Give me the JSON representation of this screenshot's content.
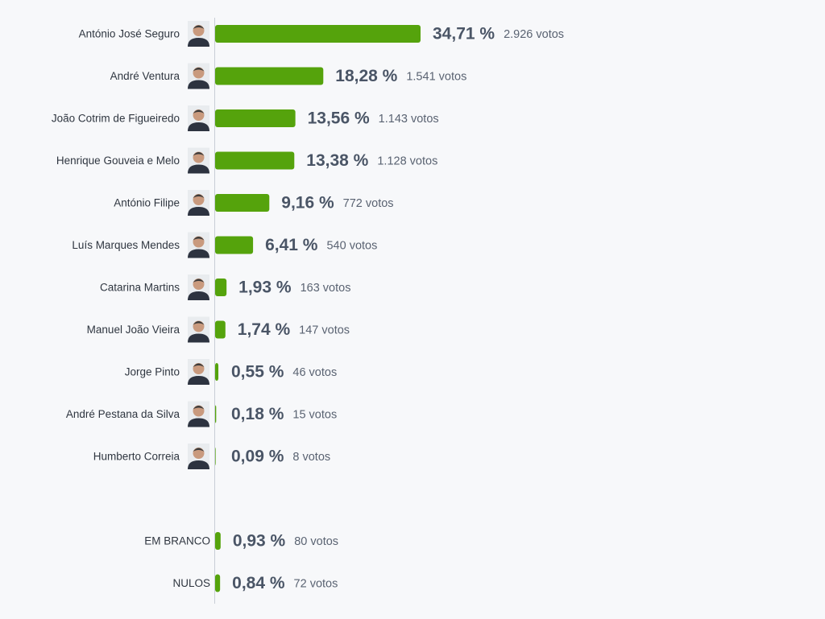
{
  "chart_data": [
    {
      "type": "bar",
      "orientation": "horizontal",
      "color": "#55a30c",
      "categories": [
        "António José Seguro",
        "André Ventura",
        "João Cotrim de Figueiredo",
        "Henrique Gouveia e Melo",
        "António Filipe",
        "Luís Marques Mendes",
        "Catarina Martins",
        "Manuel João Vieira",
        "Jorge Pinto",
        "André Pestana da Silva",
        "Humberto Correia"
      ],
      "values": [
        34.71,
        18.28,
        13.56,
        13.38,
        9.16,
        6.41,
        1.93,
        1.74,
        0.55,
        0.18,
        0.09
      ],
      "value_labels": [
        "34,71 %",
        "18,28 %",
        "13,56 %",
        "13,38 %",
        "9,16 %",
        "6,41 %",
        "1,93 %",
        "1,74 %",
        "0,55 %",
        "0,18 %",
        "0,09 %"
      ],
      "votes": [
        2926,
        1541,
        1143,
        1128,
        772,
        540,
        163,
        147,
        46,
        15,
        8
      ],
      "vote_labels": [
        "2.926 votos",
        "1.541 votos",
        "1.143 votos",
        "1.128 votos",
        "772 votos",
        "540 votos",
        "163 votos",
        "147 votos",
        "46 votos",
        "15 votos",
        "8 votos"
      ]
    },
    {
      "type": "bar",
      "orientation": "horizontal",
      "color": "#55a30c",
      "categories": [
        "EM BRANCO",
        "NULOS"
      ],
      "values": [
        0.93,
        0.84
      ],
      "value_labels": [
        "0,93 %",
        "0,84 %"
      ],
      "votes": [
        80,
        72
      ],
      "vote_labels": [
        "80 votos",
        "72 votos"
      ]
    }
  ]
}
